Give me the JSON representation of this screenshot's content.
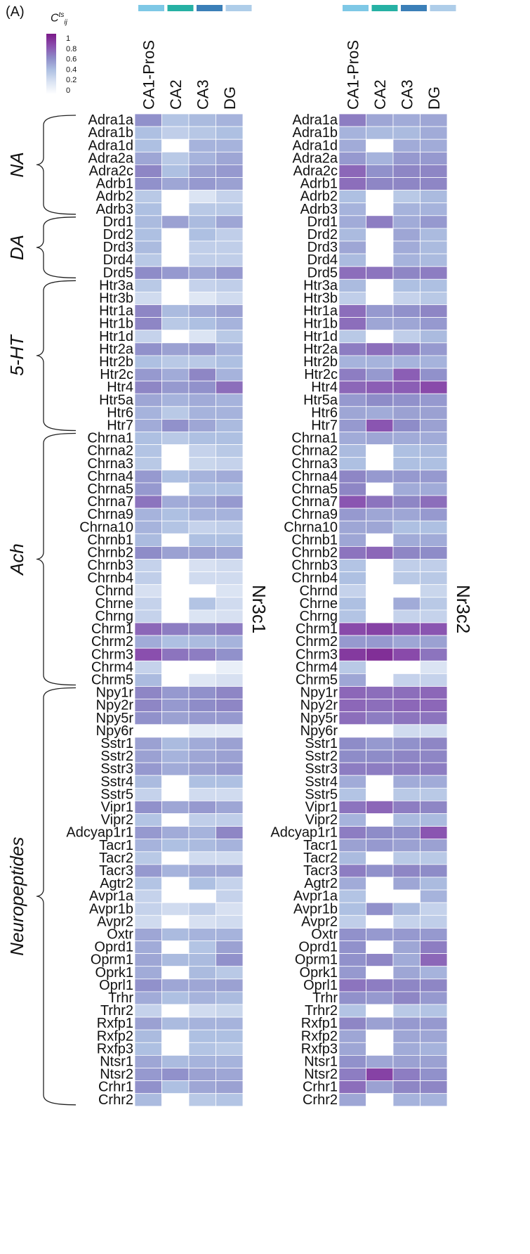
{
  "panel_label": "(A)",
  "colorbar": {
    "title": "C",
    "title_sup": "ts",
    "title_sub": "ij",
    "ticks": [
      "1",
      "0.8",
      "0.6",
      "0.4",
      "0.2",
      "0"
    ],
    "colors": [
      "#ffffff",
      "#dbe4f3",
      "#aec0e2",
      "#8e8cc8",
      "#8a4fae",
      "#7b1a88"
    ]
  },
  "column_header_colors": [
    "#7ec8e6",
    "#26b1a4",
    "#3b7fb8",
    "#aecde9"
  ],
  "chart_data": {
    "type": "heatmap",
    "color_range": [
      0,
      1
    ],
    "columns": [
      "CA1-ProS",
      "CA2",
      "CA3",
      "DG"
    ],
    "rows": [
      "Adra1a",
      "Adra1b",
      "Adra1d",
      "Adra2a",
      "Adra2c",
      "Adrb1",
      "Adrb2",
      "Adrb3",
      "Drd1",
      "Drd2",
      "Drd3",
      "Drd4",
      "Drd5",
      "Htr3a",
      "Htr3b",
      "Htr1a",
      "Htr1b",
      "Htr1d",
      "Htr2a",
      "Htr2b",
      "Htr2c",
      "Htr4",
      "Htr5a",
      "Htr6",
      "Htr7",
      "Chrna1",
      "Chrna2",
      "Chrna3",
      "Chrna4",
      "Chrna5",
      "Chrna7",
      "Chrna9",
      "Chrna10",
      "Chrnb1",
      "Chrnb2",
      "Chrnb3",
      "Chrnb4",
      "Chrnd",
      "Chrne",
      "Chrng",
      "Chrm1",
      "Chrm2",
      "Chrm3",
      "Chrm4",
      "Chrm5",
      "Npy1r",
      "Npy2r",
      "Npy5r",
      "Npy6r",
      "Sstr1",
      "Sstr2",
      "Sstr3",
      "Sstr4",
      "Sstr5",
      "Vipr1",
      "Vipr2",
      "Adcyap1r1",
      "Tacr1",
      "Tacr2",
      "Tacr3",
      "Agtr2",
      "Avpr1a",
      "Avpr1b",
      "Avpr2",
      "Oxtr",
      "Oprd1",
      "Oprm1",
      "Oprk1",
      "Oprl1",
      "Trhr",
      "Trhr2",
      "Rxfp1",
      "Rxfp2",
      "Rxfp3",
      "Ntsr1",
      "Ntsr2",
      "Crhr1",
      "Crhr2"
    ],
    "groups": [
      {
        "label": "NA",
        "start": 0,
        "end": 7
      },
      {
        "label": "DA",
        "start": 8,
        "end": 12
      },
      {
        "label": "5-HT",
        "start": 13,
        "end": 24
      },
      {
        "label": "Ach",
        "start": 25,
        "end": 44
      },
      {
        "label": "Neuropeptides",
        "start": 45,
        "end": 77
      }
    ],
    "panels": [
      {
        "title": "Nr3c1",
        "values": [
          [
            0.58,
            0.38,
            0.42,
            0.45
          ],
          [
            0.4,
            0.32,
            0.36,
            0.4
          ],
          [
            0.4,
            0.0,
            0.45,
            0.45
          ],
          [
            0.5,
            0.35,
            0.45,
            0.5
          ],
          [
            0.62,
            0.4,
            0.52,
            0.55
          ],
          [
            0.58,
            0.5,
            0.55,
            0.52
          ],
          [
            0.35,
            0.0,
            0.2,
            0.3
          ],
          [
            0.4,
            0.0,
            0.35,
            0.35
          ],
          [
            0.42,
            0.52,
            0.42,
            0.5
          ],
          [
            0.4,
            0.0,
            0.4,
            0.32
          ],
          [
            0.42,
            0.0,
            0.32,
            0.32
          ],
          [
            0.35,
            0.0,
            0.32,
            0.32
          ],
          [
            0.6,
            0.55,
            0.5,
            0.55
          ],
          [
            0.35,
            0.0,
            0.3,
            0.32
          ],
          [
            0.25,
            0.0,
            0.18,
            0.25
          ],
          [
            0.62,
            0.42,
            0.48,
            0.52
          ],
          [
            0.62,
            0.35,
            0.4,
            0.45
          ],
          [
            0.3,
            0.0,
            0.2,
            0.35
          ],
          [
            0.58,
            0.52,
            0.55,
            0.45
          ],
          [
            0.4,
            0.35,
            0.35,
            0.4
          ],
          [
            0.55,
            0.48,
            0.62,
            0.45
          ],
          [
            0.62,
            0.55,
            0.58,
            0.7
          ],
          [
            0.5,
            0.45,
            0.48,
            0.45
          ],
          [
            0.45,
            0.35,
            0.45,
            0.45
          ],
          [
            0.48,
            0.58,
            0.5,
            0.42
          ],
          [
            0.4,
            0.35,
            0.4,
            0.4
          ],
          [
            0.38,
            0.0,
            0.3,
            0.35
          ],
          [
            0.35,
            0.0,
            0.28,
            0.3
          ],
          [
            0.55,
            0.4,
            0.45,
            0.48
          ],
          [
            0.55,
            0.0,
            0.4,
            0.4
          ],
          [
            0.68,
            0.48,
            0.5,
            0.55
          ],
          [
            0.45,
            0.4,
            0.45,
            0.45
          ],
          [
            0.45,
            0.38,
            0.3,
            0.32
          ],
          [
            0.42,
            0.0,
            0.4,
            0.4
          ],
          [
            0.6,
            0.52,
            0.52,
            0.5
          ],
          [
            0.3,
            0.0,
            0.22,
            0.25
          ],
          [
            0.32,
            0.0,
            0.25,
            0.25
          ],
          [
            0.22,
            0.0,
            0.0,
            0.2
          ],
          [
            0.3,
            0.0,
            0.38,
            0.25
          ],
          [
            0.3,
            0.0,
            0.2,
            0.22
          ],
          [
            0.72,
            0.65,
            0.62,
            0.65
          ],
          [
            0.48,
            0.4,
            0.42,
            0.45
          ],
          [
            0.8,
            0.68,
            0.65,
            0.58
          ],
          [
            0.3,
            0.0,
            0.0,
            0.12
          ],
          [
            0.42,
            0.0,
            0.18,
            0.22
          ],
          [
            0.62,
            0.55,
            0.58,
            0.62
          ],
          [
            0.62,
            0.55,
            0.6,
            0.62
          ],
          [
            0.58,
            0.52,
            0.55,
            0.55
          ],
          [
            0.0,
            0.0,
            0.15,
            0.15
          ],
          [
            0.52,
            0.42,
            0.48,
            0.52
          ],
          [
            0.52,
            0.45,
            0.5,
            0.52
          ],
          [
            0.55,
            0.48,
            0.52,
            0.55
          ],
          [
            0.42,
            0.0,
            0.4,
            0.4
          ],
          [
            0.3,
            0.0,
            0.25,
            0.25
          ],
          [
            0.58,
            0.5,
            0.55,
            0.5
          ],
          [
            0.38,
            0.0,
            0.32,
            0.32
          ],
          [
            0.55,
            0.48,
            0.45,
            0.62
          ],
          [
            0.45,
            0.4,
            0.42,
            0.45
          ],
          [
            0.35,
            0.0,
            0.25,
            0.25
          ],
          [
            0.55,
            0.45,
            0.5,
            0.5
          ],
          [
            0.38,
            0.0,
            0.4,
            0.3
          ],
          [
            0.3,
            0.0,
            0.0,
            0.3
          ],
          [
            0.3,
            0.25,
            0.32,
            0.22
          ],
          [
            0.25,
            0.0,
            0.22,
            0.25
          ],
          [
            0.5,
            0.42,
            0.45,
            0.45
          ],
          [
            0.48,
            0.0,
            0.38,
            0.52
          ],
          [
            0.5,
            0.42,
            0.42,
            0.58
          ],
          [
            0.48,
            0.0,
            0.42,
            0.35
          ],
          [
            0.58,
            0.5,
            0.5,
            0.52
          ],
          [
            0.48,
            0.4,
            0.45,
            0.42
          ],
          [
            0.3,
            0.0,
            0.25,
            0.28
          ],
          [
            0.52,
            0.42,
            0.45,
            0.45
          ],
          [
            0.42,
            0.0,
            0.4,
            0.4
          ],
          [
            0.4,
            0.0,
            0.38,
            0.35
          ],
          [
            0.5,
            0.42,
            0.45,
            0.45
          ],
          [
            0.55,
            0.58,
            0.52,
            0.5
          ],
          [
            0.58,
            0.4,
            0.5,
            0.52
          ],
          [
            0.42,
            0.0,
            0.35,
            0.38
          ]
        ]
      },
      {
        "title": "Nr3c2",
        "values": [
          [
            0.65,
            0.5,
            0.48,
            0.5
          ],
          [
            0.45,
            0.42,
            0.42,
            0.48
          ],
          [
            0.48,
            0.0,
            0.48,
            0.48
          ],
          [
            0.55,
            0.45,
            0.55,
            0.55
          ],
          [
            0.72,
            0.58,
            0.62,
            0.62
          ],
          [
            0.7,
            0.62,
            0.62,
            0.62
          ],
          [
            0.4,
            0.0,
            0.35,
            0.42
          ],
          [
            0.45,
            0.0,
            0.45,
            0.45
          ],
          [
            0.48,
            0.65,
            0.48,
            0.55
          ],
          [
            0.42,
            0.0,
            0.5,
            0.42
          ],
          [
            0.5,
            0.0,
            0.48,
            0.42
          ],
          [
            0.42,
            0.0,
            0.45,
            0.42
          ],
          [
            0.7,
            0.68,
            0.62,
            0.65
          ],
          [
            0.42,
            0.0,
            0.4,
            0.4
          ],
          [
            0.32,
            0.0,
            0.3,
            0.35
          ],
          [
            0.7,
            0.55,
            0.58,
            0.62
          ],
          [
            0.7,
            0.5,
            0.5,
            0.55
          ],
          [
            0.35,
            0.0,
            0.32,
            0.42
          ],
          [
            0.65,
            0.7,
            0.65,
            0.55
          ],
          [
            0.45,
            0.45,
            0.45,
            0.45
          ],
          [
            0.65,
            0.55,
            0.75,
            0.58
          ],
          [
            0.72,
            0.75,
            0.75,
            0.82
          ],
          [
            0.55,
            0.6,
            0.58,
            0.55
          ],
          [
            0.5,
            0.48,
            0.52,
            0.52
          ],
          [
            0.55,
            0.78,
            0.6,
            0.52
          ],
          [
            0.48,
            0.5,
            0.48,
            0.48
          ],
          [
            0.42,
            0.0,
            0.4,
            0.42
          ],
          [
            0.4,
            0.0,
            0.4,
            0.4
          ],
          [
            0.62,
            0.55,
            0.55,
            0.55
          ],
          [
            0.62,
            0.0,
            0.48,
            0.48
          ],
          [
            0.78,
            0.68,
            0.62,
            0.7
          ],
          [
            0.55,
            0.5,
            0.5,
            0.55
          ],
          [
            0.5,
            0.5,
            0.4,
            0.4
          ],
          [
            0.5,
            0.0,
            0.48,
            0.48
          ],
          [
            0.68,
            0.72,
            0.62,
            0.6
          ],
          [
            0.38,
            0.0,
            0.32,
            0.32
          ],
          [
            0.4,
            0.0,
            0.35,
            0.35
          ],
          [
            0.3,
            0.0,
            0.0,
            0.28
          ],
          [
            0.4,
            0.0,
            0.48,
            0.35
          ],
          [
            0.38,
            0.0,
            0.3,
            0.3
          ],
          [
            0.82,
            0.85,
            0.78,
            0.78
          ],
          [
            0.55,
            0.55,
            0.5,
            0.52
          ],
          [
            0.88,
            0.92,
            0.82,
            0.68
          ],
          [
            0.35,
            0.0,
            0.0,
            0.2
          ],
          [
            0.5,
            0.0,
            0.3,
            0.3
          ],
          [
            0.72,
            0.7,
            0.7,
            0.72
          ],
          [
            0.72,
            0.7,
            0.72,
            0.72
          ],
          [
            0.7,
            0.65,
            0.68,
            0.68
          ],
          [
            0.0,
            0.0,
            0.25,
            0.25
          ],
          [
            0.6,
            0.55,
            0.58,
            0.62
          ],
          [
            0.6,
            0.6,
            0.62,
            0.62
          ],
          [
            0.65,
            0.65,
            0.65,
            0.65
          ],
          [
            0.48,
            0.0,
            0.48,
            0.48
          ],
          [
            0.38,
            0.0,
            0.35,
            0.35
          ],
          [
            0.68,
            0.72,
            0.65,
            0.62
          ],
          [
            0.45,
            0.0,
            0.42,
            0.42
          ],
          [
            0.65,
            0.6,
            0.58,
            0.78
          ],
          [
            0.52,
            0.55,
            0.52,
            0.52
          ],
          [
            0.42,
            0.0,
            0.35,
            0.35
          ],
          [
            0.65,
            0.58,
            0.62,
            0.6
          ],
          [
            0.48,
            0.0,
            0.5,
            0.42
          ],
          [
            0.38,
            0.0,
            0.0,
            0.45
          ],
          [
            0.4,
            0.58,
            0.42,
            0.3
          ],
          [
            0.32,
            0.0,
            0.3,
            0.32
          ],
          [
            0.58,
            0.55,
            0.55,
            0.55
          ],
          [
            0.58,
            0.0,
            0.5,
            0.65
          ],
          [
            0.58,
            0.62,
            0.48,
            0.72
          ],
          [
            0.55,
            0.0,
            0.5,
            0.45
          ],
          [
            0.68,
            0.65,
            0.62,
            0.62
          ],
          [
            0.58,
            0.55,
            0.62,
            0.55
          ],
          [
            0.38,
            0.0,
            0.35,
            0.38
          ],
          [
            0.62,
            0.52,
            0.55,
            0.55
          ],
          [
            0.5,
            0.0,
            0.5,
            0.5
          ],
          [
            0.5,
            0.0,
            0.48,
            0.45
          ],
          [
            0.58,
            0.5,
            0.52,
            0.52
          ],
          [
            0.65,
            0.85,
            0.65,
            0.58
          ],
          [
            0.7,
            0.52,
            0.62,
            0.62
          ],
          [
            0.5,
            0.0,
            0.45,
            0.45
          ]
        ]
      }
    ]
  }
}
